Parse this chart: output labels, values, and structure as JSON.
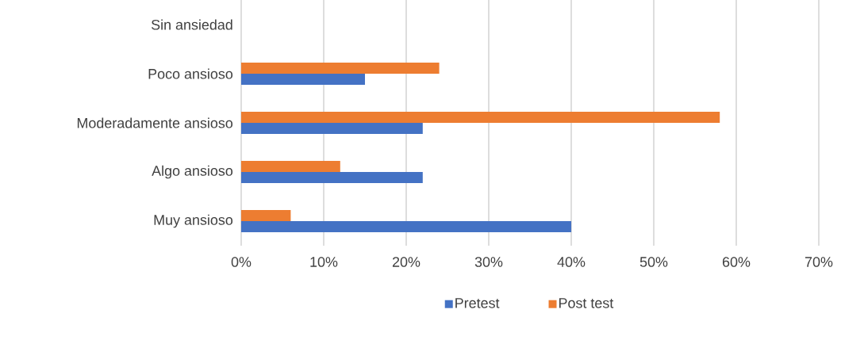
{
  "chart_data": {
    "type": "bar",
    "orientation": "horizontal",
    "categories": [
      "Sin ansiedad",
      "Poco ansioso",
      "Moderadamente ansioso",
      "Algo ansioso",
      "Muy ansioso"
    ],
    "series": [
      {
        "name": "Pretest",
        "color": "#4472c4",
        "values": [
          0,
          15,
          22,
          22,
          40
        ]
      },
      {
        "name": "Post test",
        "color": "#ed7d31",
        "values": [
          0,
          24,
          58,
          12,
          6
        ]
      }
    ],
    "xlim": [
      0,
      70
    ],
    "xticks": [
      {
        "value": 0,
        "label": "0%"
      },
      {
        "value": 10,
        "label": "10%"
      },
      {
        "value": 20,
        "label": "20%"
      },
      {
        "value": 30,
        "label": "30%"
      },
      {
        "value": 40,
        "label": "40%"
      },
      {
        "value": 50,
        "label": "50%"
      },
      {
        "value": 60,
        "label": "60%"
      },
      {
        "value": 70,
        "label": "70%"
      }
    ],
    "grid": "x",
    "legend": "bottom"
  }
}
